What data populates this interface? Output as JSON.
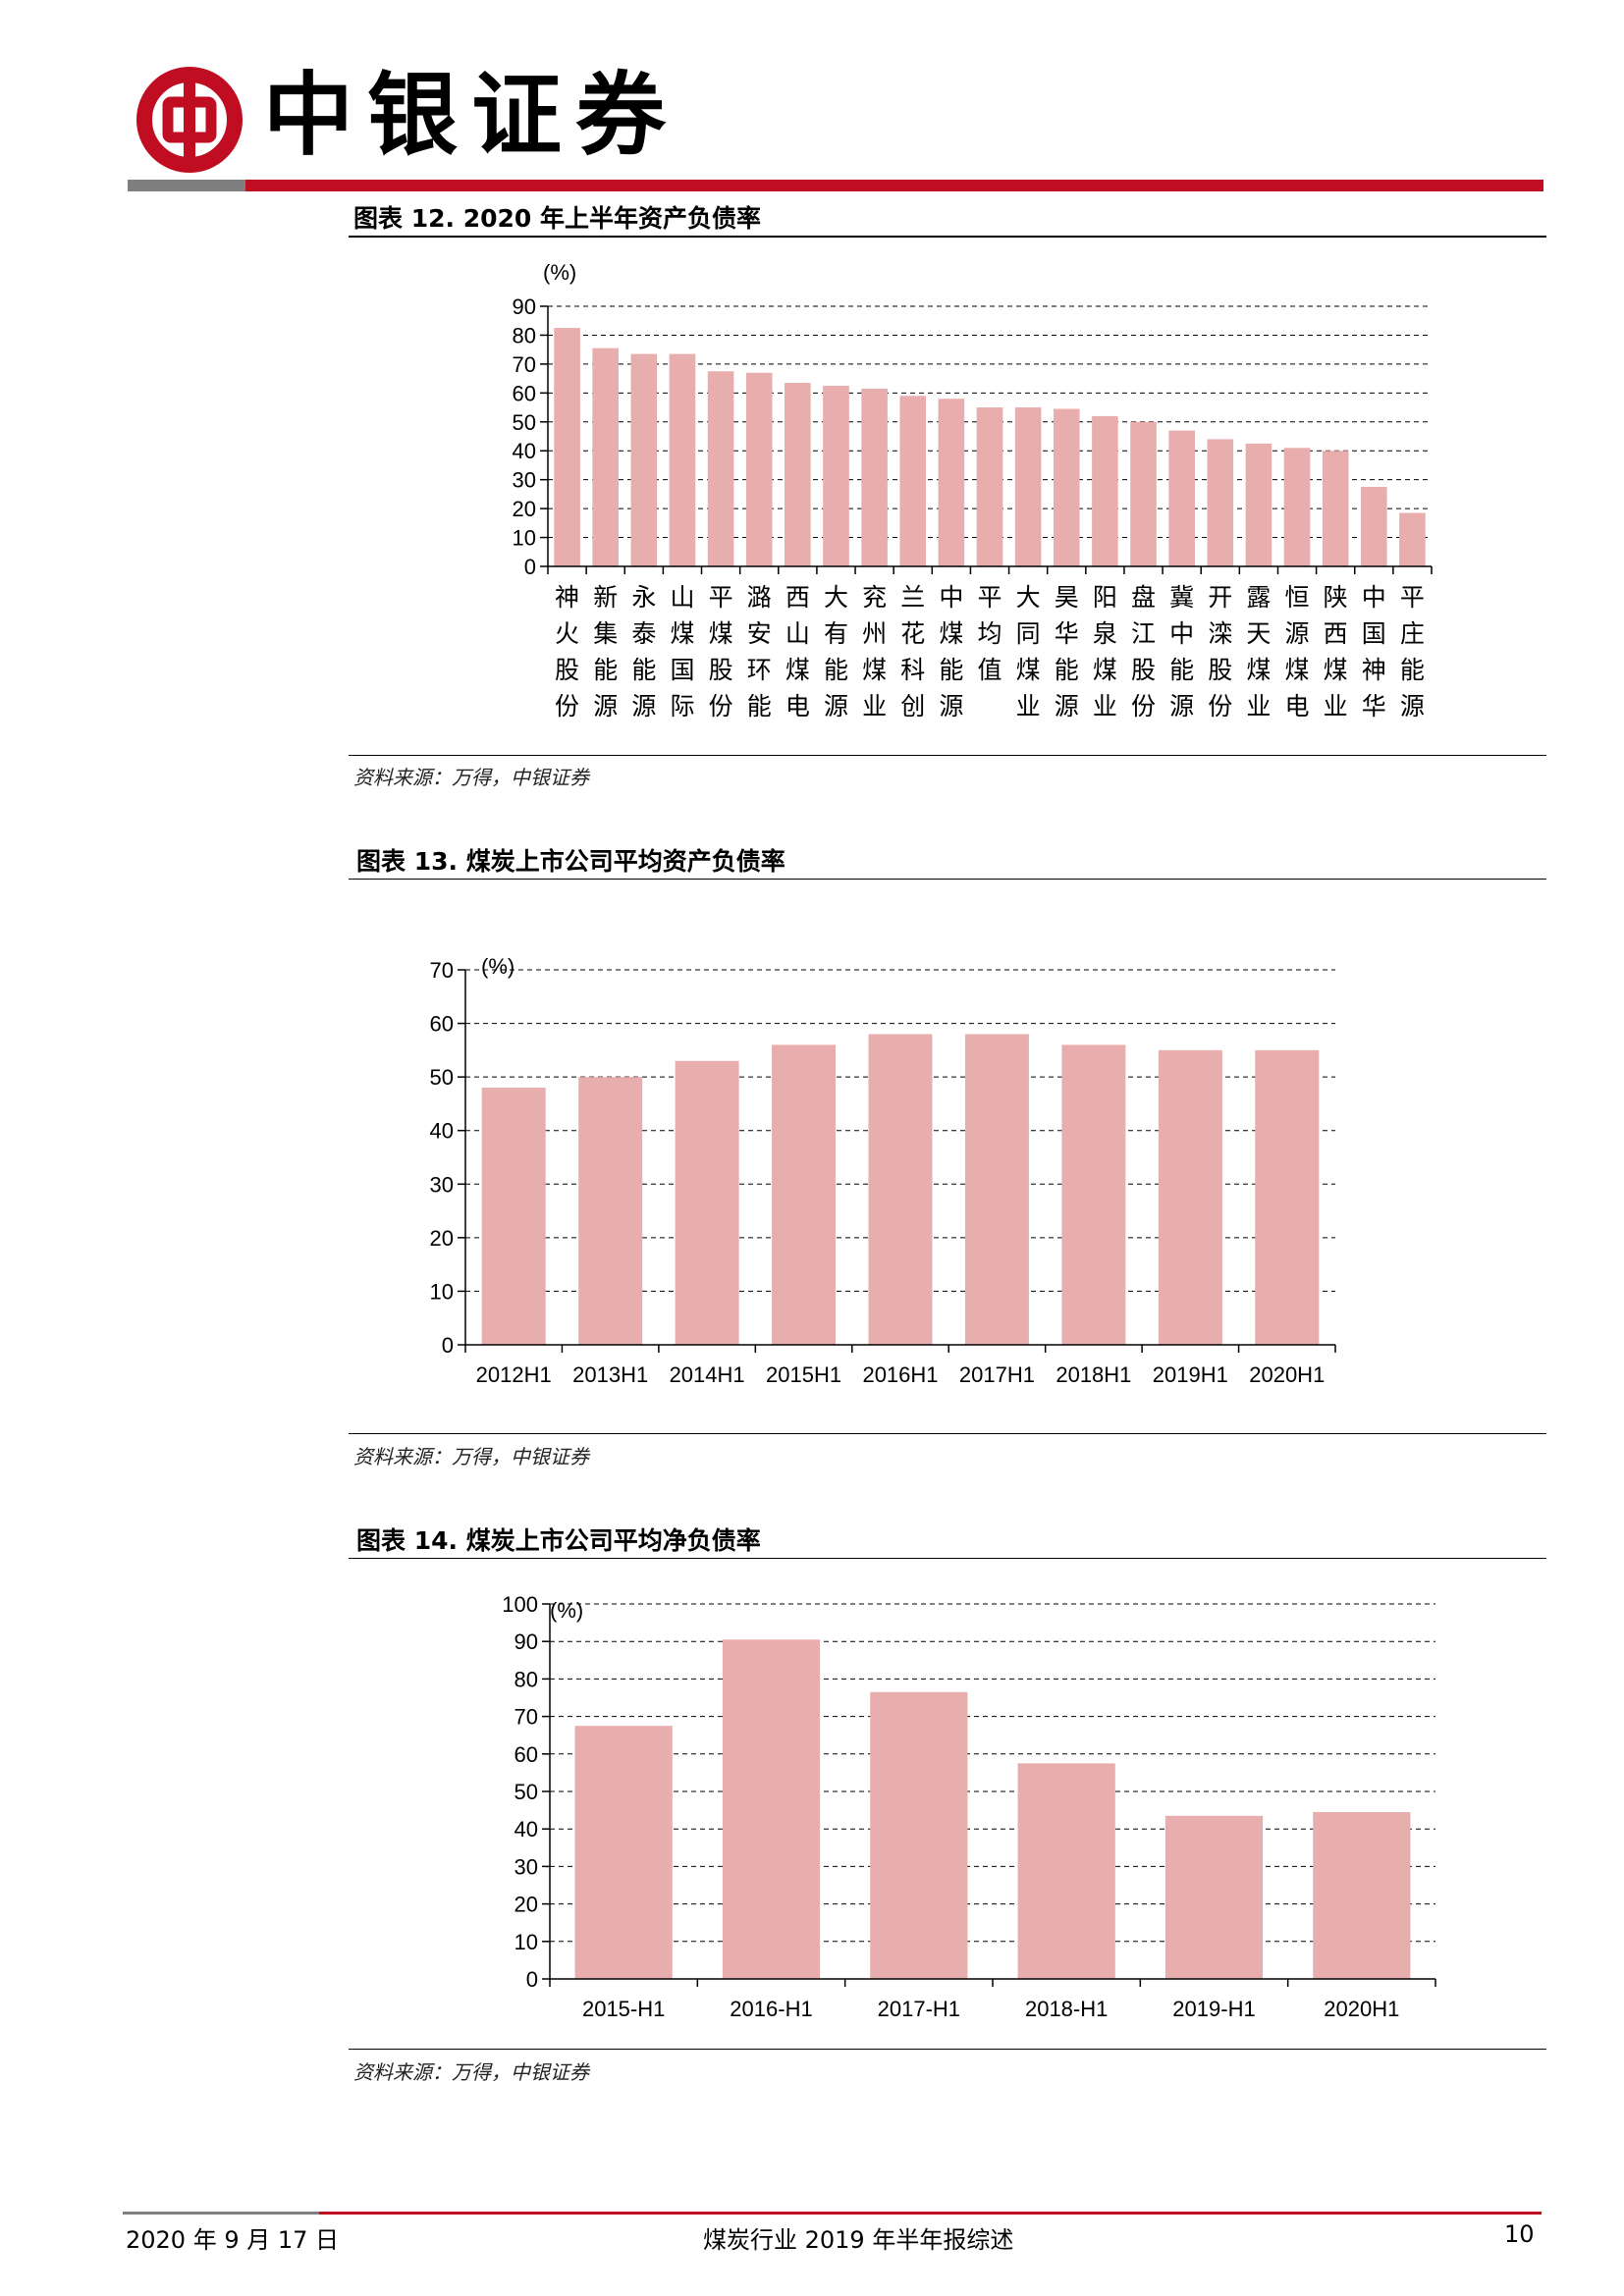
{
  "header": {
    "brand_name": "中银证券",
    "logo_icon": "bank-of-china-logo",
    "accent_color": "#c00d22",
    "grey_color": "#7f7f7f"
  },
  "figures": [
    {
      "title": "图表 12. 2020 年上半年资产负债率",
      "source": "资料来源：万得，中银证券"
    },
    {
      "title": "图表 13. 煤炭上市公司平均资产负债率",
      "source": "资料来源：万得，中银证券"
    },
    {
      "title": "图表 14. 煤炭上市公司平均净负债率",
      "source": "资料来源：万得，中银证券"
    }
  ],
  "chart_data": [
    {
      "type": "bar",
      "unit_label": "(%)",
      "categories": [
        "神火股份",
        "新集能源",
        "永泰能源",
        "山煤国际",
        "平煤股份",
        "潞安环能",
        "西山煤电",
        "大有能源",
        "兖州煤业",
        "兰花科创",
        "中煤能源",
        "平均值",
        "大同煤业",
        "昊华能源",
        "阳泉煤业",
        "盘江股份",
        "冀中能源",
        "开滦股份",
        "露天煤业",
        "恒源煤电",
        "陕西煤业",
        "中国神华",
        "平庄能源"
      ],
      "values": [
        82.5,
        75.5,
        73.5,
        73.5,
        67.5,
        67,
        63.5,
        62.5,
        61.5,
        59,
        58,
        55,
        55,
        54.5,
        52,
        50,
        47,
        44,
        42.5,
        41,
        40,
        27.5,
        18.5
      ],
      "ylim": [
        0,
        90
      ],
      "yticks": [
        0,
        10,
        20,
        30,
        40,
        50,
        60,
        70,
        80,
        90
      ],
      "grid": true,
      "bar_color": "#e8aeae"
    },
    {
      "type": "bar",
      "unit_label": "(%)",
      "categories": [
        "2012H1",
        "2013H1",
        "2014H1",
        "2015H1",
        "2016H1",
        "2017H1",
        "2018H1",
        "2019H1",
        "2020H1"
      ],
      "values": [
        48,
        50,
        53,
        56,
        58,
        58,
        56,
        55,
        55
      ],
      "ylim": [
        0,
        70
      ],
      "yticks": [
        0,
        10,
        20,
        30,
        40,
        50,
        60,
        70
      ],
      "grid": true,
      "bar_color": "#e8aeae"
    },
    {
      "type": "bar",
      "unit_label": "(%)",
      "categories": [
        "2015-H1",
        "2016-H1",
        "2017-H1",
        "2018-H1",
        "2019-H1",
        "2020H1"
      ],
      "values": [
        67.5,
        90.5,
        76.5,
        57.5,
        43.5,
        44.5
      ],
      "ylim": [
        0,
        100
      ],
      "yticks": [
        0,
        10,
        20,
        30,
        40,
        50,
        60,
        70,
        80,
        90,
        100
      ],
      "grid": true,
      "bar_color": "#e8aeae"
    }
  ],
  "footer": {
    "date": "2020 年 9 月 17 日",
    "doc_title": "煤炭行业 2019 年半年报综述",
    "page_number": "10"
  }
}
